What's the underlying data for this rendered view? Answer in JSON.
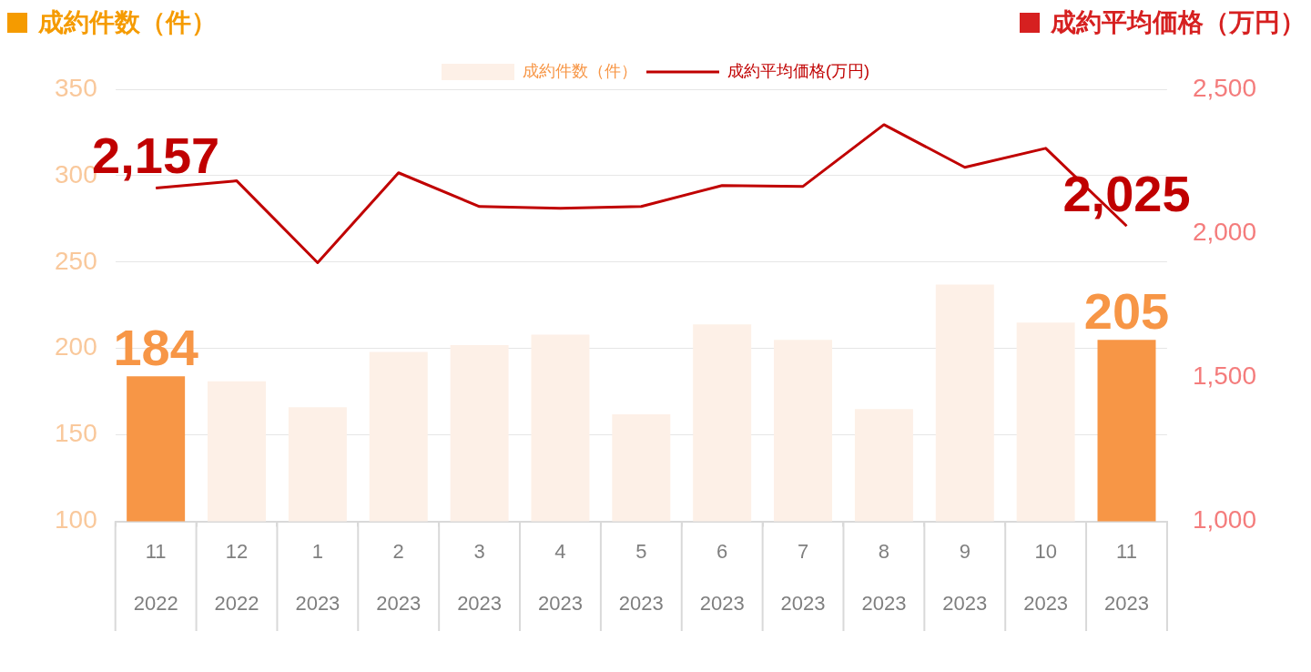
{
  "chart_data": {
    "type": "bar",
    "ylabel": "成約件数（件）",
    "y2label": "成約平均価格（万円）",
    "categories": [
      "11\n2022",
      "12\n2022",
      "1\n2023",
      "2\n2023",
      "3\n2023",
      "4\n2023",
      "5\n2023",
      "6\n2023",
      "7\n2023",
      "8\n2023",
      "9\n2023",
      "10\n2023",
      "11\n2023"
    ],
    "series": [
      {
        "name": "成約件数（件）",
        "color": "#fdf0e7",
        "colors": [
          "#f79646",
          "#fdf0e7",
          "#fdf0e7",
          "#fdf0e7",
          "#fdf0e7",
          "#fdf0e7",
          "#fdf0e7",
          "#fdf0e7",
          "#fdf0e7",
          "#fdf0e7",
          "#fdf0e7",
          "#fdf0e7",
          "#f79646"
        ],
        "values": [
          184,
          181,
          166,
          198,
          202,
          208,
          162,
          214,
          205,
          165,
          237,
          215,
          205
        ],
        "value_labels": [
          "184",
          null,
          null,
          null,
          null,
          null,
          null,
          null,
          null,
          null,
          null,
          null,
          "205"
        ]
      },
      {
        "name": "成約平均価格(万円)",
        "type": "line",
        "axis": "y2",
        "color": "#c00000",
        "values": [
          2157,
          2182,
          1898,
          2210,
          2093,
          2087,
          2093,
          2166,
          2163,
          2377,
          2229,
          2295,
          2025
        ],
        "value_labels": [
          "2,157",
          null,
          null,
          null,
          null,
          null,
          null,
          null,
          null,
          null,
          null,
          null,
          "2,025"
        ]
      }
    ],
    "ylim": [
      100,
      350
    ],
    "yticks": [
      100,
      150,
      200,
      250,
      300,
      350
    ],
    "y2lim": [
      1000,
      2500
    ],
    "y2ticks": [
      {
        "value": 1000,
        "label": "1,000"
      },
      {
        "value": 1500,
        "label": "1,500"
      },
      {
        "value": 2000,
        "label": "2,000"
      },
      {
        "value": 2500,
        "label": "2,500"
      }
    ],
    "grid": "y",
    "legend": "top",
    "marker": "none",
    "line_style": "solid"
  }
}
